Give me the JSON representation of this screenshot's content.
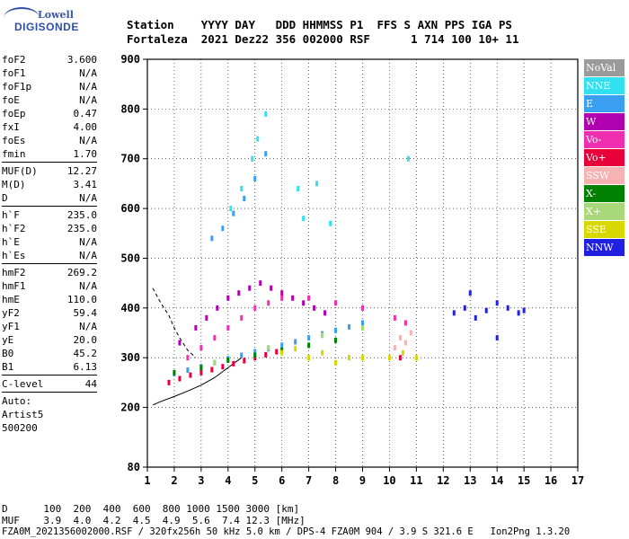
{
  "logo": {
    "top": "Lowell",
    "bottom": "DIGISONDE"
  },
  "header": {
    "line1": "Station    YYYY DAY   DDD HHMMSS P1  FFS S AXN PPS IGA PS",
    "line2": "Fortaleza  2021 Dez22 356 002000 RSF      1 714 100 10+ 11"
  },
  "params": [
    {
      "k": "foF2",
      "v": "3.600"
    },
    {
      "k": "foF1",
      "v": "N/A"
    },
    {
      "k": "foF1p",
      "v": "N/A"
    },
    {
      "k": "foE",
      "v": "N/A"
    },
    {
      "k": "foEp",
      "v": "0.47"
    },
    {
      "k": "fxI",
      "v": "4.00"
    },
    {
      "k": "foEs",
      "v": "N/A"
    },
    {
      "k": "fmin",
      "v": "1.70"
    },
    {
      "sep": true
    },
    {
      "k": "MUF(D)",
      "v": "12.27"
    },
    {
      "k": "M(D)",
      "v": "3.41"
    },
    {
      "k": "D",
      "v": "N/A"
    },
    {
      "sep": true
    },
    {
      "k": "h`F",
      "v": "235.0"
    },
    {
      "k": "h`F2",
      "v": "235.0"
    },
    {
      "k": "h`E",
      "v": "N/A"
    },
    {
      "k": "h`Es",
      "v": "N/A"
    },
    {
      "sep": true
    },
    {
      "k": "hmF2",
      "v": "269.2"
    },
    {
      "k": "hmF1",
      "v": "N/A"
    },
    {
      "k": "hmE",
      "v": "110.0"
    },
    {
      "k": "yF2",
      "v": "59.4"
    },
    {
      "k": "yF1",
      "v": "N/A"
    },
    {
      "k": "yE",
      "v": "20.0"
    },
    {
      "k": "B0",
      "v": "45.2"
    },
    {
      "k": "B1",
      "v": "6.13"
    },
    {
      "sep": true
    },
    {
      "k": "C-level",
      "v": "44"
    },
    {
      "sep": true
    }
  ],
  "auto": [
    "Auto:",
    "Artist5",
    "500200"
  ],
  "legend": [
    {
      "label": "NoVal",
      "color": "#9a9a9a"
    },
    {
      "label": "NNE",
      "color": "#33e0f0"
    },
    {
      "label": "E",
      "color": "#3a9ff0"
    },
    {
      "label": "W",
      "color": "#b000b0"
    },
    {
      "label": "Vo-",
      "color": "#f02eb0"
    },
    {
      "label": "Vo+",
      "color": "#e8003a"
    },
    {
      "label": "SSW",
      "color": "#f7b3b3"
    },
    {
      "label": "X-",
      "color": "#008000"
    },
    {
      "label": "X+",
      "color": "#a8d878"
    },
    {
      "label": "SSE",
      "color": "#d8d800"
    },
    {
      "label": "NNW",
      "color": "#2020e0"
    }
  ],
  "chart_data": {
    "type": "scatter",
    "title": "",
    "xlabel": "",
    "ylabel": "",
    "xlim": [
      1,
      17
    ],
    "ylim": [
      80,
      900
    ],
    "x_ticks": [
      1,
      2,
      3,
      4,
      5,
      6,
      7,
      8,
      9,
      10,
      11,
      12,
      13,
      14,
      15,
      16,
      17
    ],
    "y_ticks": [
      80,
      200,
      300,
      400,
      500,
      600,
      700,
      800,
      900
    ],
    "grid": true,
    "legend_position": "right",
    "series": [
      {
        "name": "NNE",
        "color": "#33e0f0",
        "x": [
          4.1,
          4.5,
          4.9,
          5.1,
          5.4,
          6.6,
          6.8,
          7.3,
          7.8,
          10.7
        ],
        "y": [
          600,
          640,
          700,
          740,
          790,
          640,
          580,
          650,
          570,
          700
        ]
      },
      {
        "name": "E",
        "color": "#3a9ff0",
        "x": [
          2.0,
          2.5,
          3.0,
          3.5,
          4.0,
          4.5,
          5.0,
          5.5,
          6.0,
          6.5,
          7.0,
          7.5,
          8.0,
          8.5,
          9.0,
          3.4,
          3.8,
          4.2,
          4.6,
          5.0,
          5.4
        ],
        "y": [
          268,
          275,
          282,
          290,
          298,
          305,
          312,
          318,
          325,
          332,
          340,
          348,
          355,
          362,
          370,
          540,
          560,
          590,
          620,
          660,
          710
        ]
      },
      {
        "name": "W",
        "color": "#b000b0",
        "x": [
          2.2,
          2.8,
          3.2,
          3.6,
          4.0,
          4.4,
          4.8,
          5.2,
          5.6,
          6.0,
          6.4,
          6.8,
          7.2,
          7.6
        ],
        "y": [
          330,
          360,
          380,
          400,
          420,
          430,
          440,
          450,
          440,
          430,
          420,
          410,
          400,
          390
        ]
      },
      {
        "name": "Vo-",
        "color": "#f02eb0",
        "x": [
          2.5,
          3.0,
          3.5,
          4.0,
          4.5,
          5.0,
          5.5,
          6.0,
          7.0,
          8.0,
          9.0,
          10.2,
          10.6
        ],
        "y": [
          300,
          320,
          340,
          360,
          380,
          400,
          410,
          420,
          420,
          410,
          400,
          380,
          370
        ]
      },
      {
        "name": "Vo+",
        "color": "#e8003a",
        "x": [
          1.8,
          2.2,
          2.6,
          3.0,
          3.4,
          3.8,
          4.2,
          4.6,
          5.0,
          5.4,
          5.8,
          10.4
        ],
        "y": [
          250,
          258,
          265,
          270,
          276,
          282,
          288,
          294,
          300,
          306,
          312,
          300
        ]
      },
      {
        "name": "SSW",
        "color": "#f7b3b3",
        "x": [
          10.2,
          10.4,
          10.6,
          10.8
        ],
        "y": [
          320,
          340,
          330,
          350
        ]
      },
      {
        "name": "X-",
        "color": "#008000",
        "x": [
          2.0,
          3.0,
          4.0,
          5.0,
          6.0,
          7.0,
          8.0
        ],
        "y": [
          270,
          280,
          295,
          305,
          315,
          325,
          335
        ]
      },
      {
        "name": "X+",
        "color": "#a8d878",
        "x": [
          3.5,
          5.5,
          7.5,
          9.0
        ],
        "y": [
          290,
          320,
          345,
          360
        ]
      },
      {
        "name": "SSE",
        "color": "#d8d800",
        "x": [
          6.0,
          6.5,
          7.0,
          7.5,
          8.0,
          8.5,
          9.0,
          10.0,
          10.5,
          11.0
        ],
        "y": [
          310,
          318,
          300,
          310,
          290,
          300,
          300,
          300,
          310,
          300
        ]
      },
      {
        "name": "NNW",
        "color": "#2020e0",
        "x": [
          12.4,
          12.8,
          13.2,
          13.6,
          14.0,
          14.4,
          14.8,
          15.0,
          13.0,
          14.0
        ],
        "y": [
          390,
          400,
          380,
          395,
          410,
          400,
          390,
          395,
          430,
          340
        ]
      }
    ],
    "curves": [
      {
        "style": "solid",
        "x": [
          1.2,
          1.5,
          2.0,
          2.5,
          3.0,
          3.5,
          4.0,
          4.5
        ],
        "y": [
          205,
          212,
          222,
          233,
          245,
          260,
          280,
          300
        ]
      },
      {
        "style": "dashed",
        "x": [
          1.2,
          1.5,
          1.8,
          2.0,
          2.2,
          2.5,
          2.8
        ],
        "y": [
          440,
          410,
          385,
          360,
          340,
          315,
          300
        ]
      }
    ]
  },
  "footer": {
    "d_line": "D      100  200  400  600  800 1000 1500 3000 [km]",
    "muf_line": "MUF    3.9  4.0  4.2  4.5  4.9  5.6  7.4 12.3 [MHz]",
    "file_line": "FZA0M_2021356002000.RSF / 320fx256h 50 kHz 5.0 km / DPS-4 FZA0M 904 / 3.9 S 321.6 E   Ion2Png 1.3.20"
  }
}
